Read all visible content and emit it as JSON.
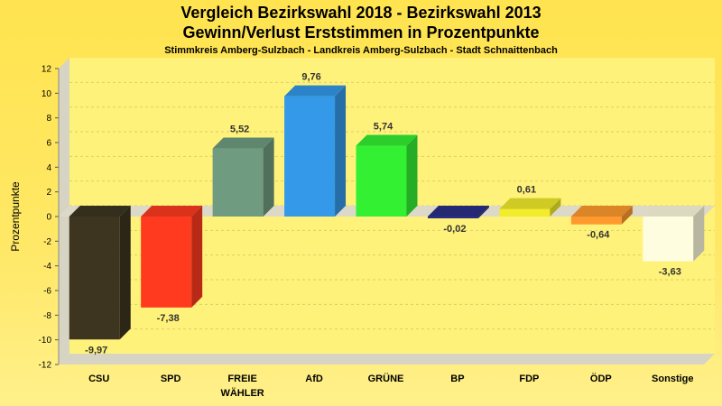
{
  "chart_data": {
    "type": "bar",
    "title_line1": "Vergleich Bezirkswahl 2018 - Bezirkswahl 2013",
    "title_line2": "Gewinn/Verlust Erststimmen in Prozentpunkte",
    "subtitle": "Stimmkreis Amberg-Sulzbach - Landkreis Amberg-Sulzbach - Stadt Schnaittenbach",
    "ylabel": "Prozentpunkte",
    "xlabel": "",
    "ylim": [
      -12,
      12
    ],
    "yticks": [
      12,
      10,
      8,
      6,
      4,
      2,
      0,
      -2,
      -4,
      -6,
      -8,
      -10,
      -12
    ],
    "categories": [
      {
        "line1": "CSU",
        "line2": ""
      },
      {
        "line1": "SPD",
        "line2": ""
      },
      {
        "line1": "FREIE",
        "line2": "WÄHLER"
      },
      {
        "line1": "AfD",
        "line2": ""
      },
      {
        "line1": "GRÜNE",
        "line2": ""
      },
      {
        "line1": "BP",
        "line2": ""
      },
      {
        "line1": "FDP",
        "line2": ""
      },
      {
        "line1": "ÖDP",
        "line2": ""
      },
      {
        "line1": "Sonstige",
        "line2": ""
      }
    ],
    "values": [
      -9.97,
      -7.38,
      5.52,
      9.76,
      5.74,
      -0.02,
      0.61,
      -0.64,
      -3.63
    ],
    "labels": [
      "-9,97",
      "-7,38",
      "5,52",
      "9,76",
      "5,74",
      "-0,02",
      "0,61",
      "-0,64",
      "-3,63"
    ],
    "colors": [
      "#3d3520",
      "#ff3a1f",
      "#6f9c80",
      "#3399e8",
      "#33f033",
      "#2b2e85",
      "#f2ec2a",
      "#ff9a2e",
      "#fffde0"
    ],
    "grid": true,
    "legend": "none"
  }
}
